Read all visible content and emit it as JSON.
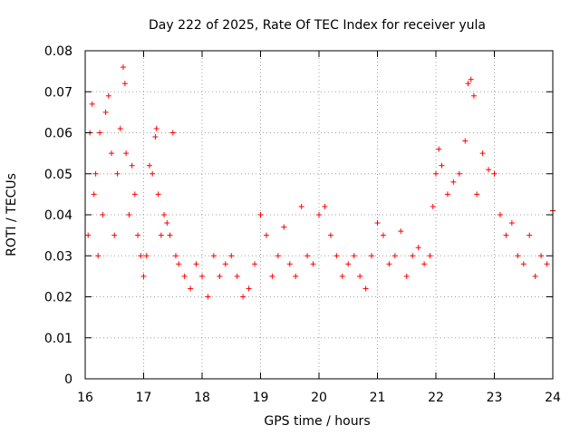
{
  "chart_data": {
    "type": "scatter",
    "title": "Day 222 of 2025, Rate Of TEC Index for receiver yula",
    "xlabel": "GPS time / hours",
    "ylabel": "ROTI / TECUs",
    "xlim": [
      16,
      24
    ],
    "ylim": [
      0,
      0.08
    ],
    "xticks": [
      "16",
      "17",
      "18",
      "19",
      "20",
      "21",
      "22",
      "23",
      "24"
    ],
    "yticks": [
      "0",
      "0.01",
      "0.02",
      "0.03",
      "0.04",
      "0.05",
      "0.06",
      "0.07",
      "0.08"
    ],
    "grid": true,
    "marker": "plus",
    "color": "#ff0000",
    "series": [
      {
        "name": "ROTI",
        "x": [
          16.05,
          16.08,
          16.12,
          16.15,
          16.18,
          16.22,
          16.25,
          16.3,
          16.35,
          16.4,
          16.45,
          16.5,
          16.55,
          16.6,
          16.65,
          16.68,
          16.7,
          16.75,
          16.8,
          16.85,
          16.9,
          16.95,
          17.0,
          17.05,
          17.1,
          17.15,
          17.2,
          17.22,
          17.25,
          17.3,
          17.35,
          17.4,
          17.45,
          17.5,
          17.55,
          17.6,
          17.7,
          17.8,
          17.9,
          18.0,
          18.1,
          18.2,
          18.3,
          18.4,
          18.5,
          18.6,
          18.7,
          18.8,
          18.9,
          19.0,
          19.1,
          19.2,
          19.3,
          19.4,
          19.5,
          19.6,
          19.7,
          19.8,
          19.9,
          20.0,
          20.1,
          20.2,
          20.3,
          20.4,
          20.5,
          20.6,
          20.7,
          20.8,
          20.9,
          21.0,
          21.1,
          21.2,
          21.3,
          21.4,
          21.5,
          21.6,
          21.7,
          21.8,
          21.9,
          21.95,
          22.0,
          22.05,
          22.1,
          22.2,
          22.3,
          22.4,
          22.5,
          22.55,
          22.6,
          22.65,
          22.7,
          22.8,
          22.9,
          23.0,
          23.1,
          23.2,
          23.3,
          23.4,
          23.5,
          23.6,
          23.7,
          23.8,
          23.9,
          24.0
        ],
        "y": [
          0.035,
          0.06,
          0.067,
          0.045,
          0.05,
          0.03,
          0.06,
          0.04,
          0.065,
          0.069,
          0.055,
          0.035,
          0.05,
          0.061,
          0.076,
          0.072,
          0.055,
          0.04,
          0.052,
          0.045,
          0.035,
          0.03,
          0.025,
          0.03,
          0.052,
          0.05,
          0.059,
          0.061,
          0.045,
          0.035,
          0.04,
          0.038,
          0.035,
          0.06,
          0.03,
          0.028,
          0.025,
          0.022,
          0.028,
          0.025,
          0.02,
          0.03,
          0.025,
          0.028,
          0.03,
          0.025,
          0.02,
          0.022,
          0.028,
          0.04,
          0.035,
          0.025,
          0.03,
          0.037,
          0.028,
          0.025,
          0.042,
          0.03,
          0.028,
          0.04,
          0.042,
          0.035,
          0.03,
          0.025,
          0.028,
          0.03,
          0.025,
          0.022,
          0.03,
          0.038,
          0.035,
          0.028,
          0.03,
          0.036,
          0.025,
          0.03,
          0.032,
          0.028,
          0.03,
          0.042,
          0.05,
          0.056,
          0.052,
          0.045,
          0.048,
          0.05,
          0.058,
          0.072,
          0.073,
          0.069,
          0.045,
          0.055,
          0.051,
          0.05,
          0.04,
          0.035,
          0.038,
          0.03,
          0.028,
          0.035,
          0.025,
          0.03,
          0.028,
          0.041
        ]
      }
    ]
  }
}
